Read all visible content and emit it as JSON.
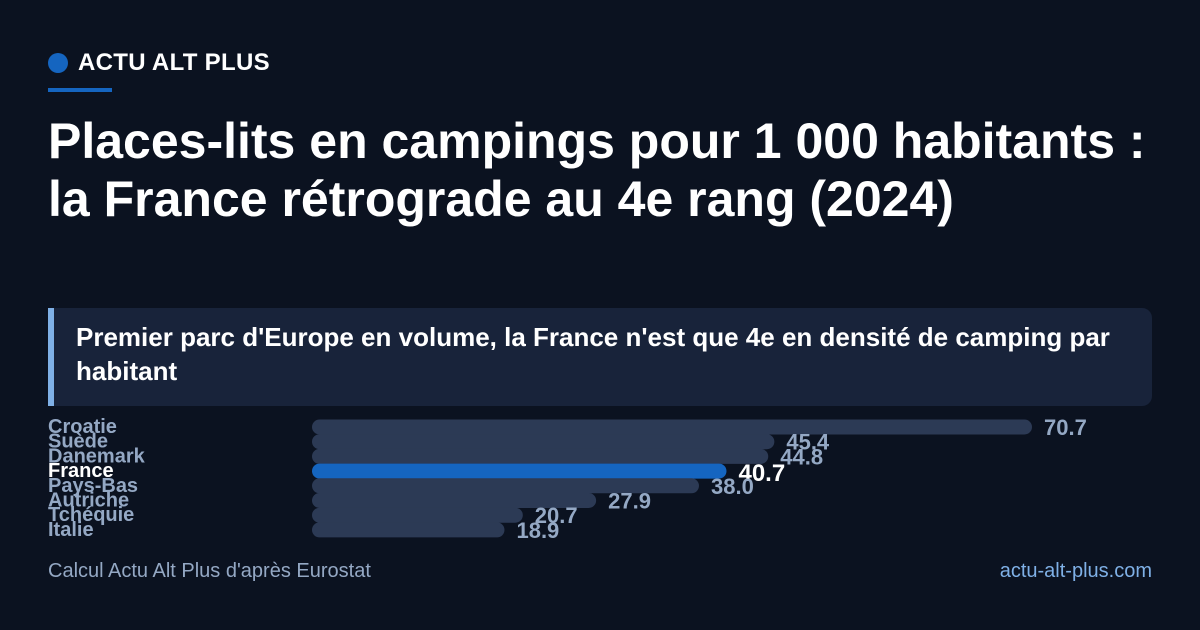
{
  "brand": {
    "name": "ACTU ALT PLUS"
  },
  "colors": {
    "background": "#0b1220",
    "accent": "#1565c0",
    "bar": "#2c3a55",
    "label": "#94a8c4",
    "highlight_text": "#ffffff"
  },
  "header": {
    "title": "Places-lits en campings pour 1 000 habitants : la France rétrograde au 4e rang (2024)",
    "subtitle": "Premier parc d'Europe en volume, la France n'est que 4e en densité de camping par habitant"
  },
  "footer": {
    "source": "Calcul Actu Alt Plus d'après Eurostat",
    "site": "actu-alt-plus.com"
  },
  "chart_data": {
    "type": "bar",
    "orientation": "horizontal",
    "categories": [
      "Croatie",
      "Suède",
      "Danemark",
      "France",
      "Pays-Bas",
      "Autriche",
      "Tchéquie",
      "Italie"
    ],
    "values": [
      70.7,
      45.4,
      44.8,
      40.7,
      38.0,
      27.9,
      20.7,
      18.9
    ],
    "value_labels": [
      "70.7",
      "45.4",
      "44.8",
      "40.7",
      "38.0",
      "27.9",
      "20.7",
      "18.9"
    ],
    "highlight": "France",
    "xlim": [
      0,
      70.7
    ],
    "grid": false
  }
}
